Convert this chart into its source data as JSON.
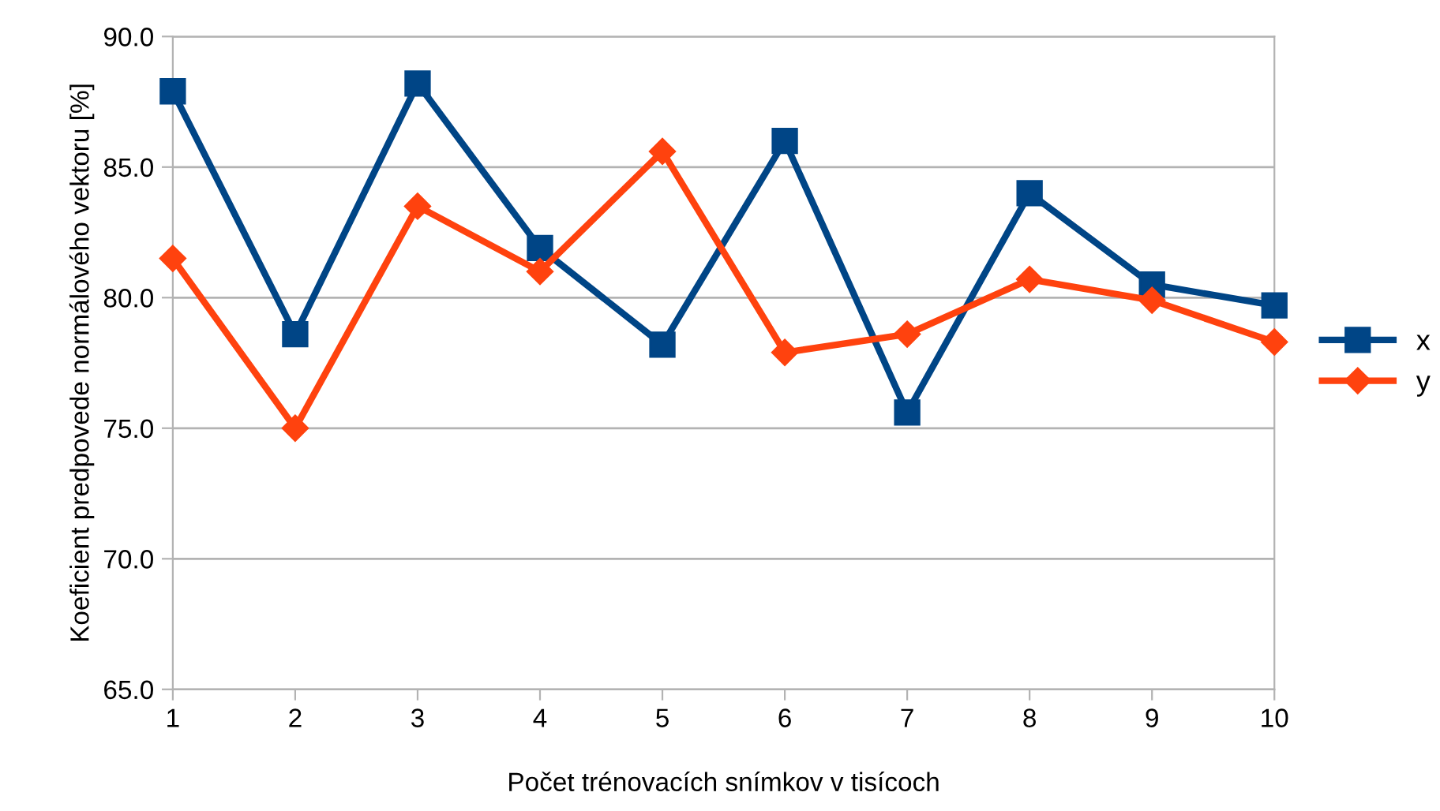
{
  "chart_data": {
    "type": "line",
    "xlabel": "Počet trénovacích snímkov v tisícoch",
    "ylabel": "Koeficient predpovede normálového vektoru [%]",
    "x": [
      1,
      2,
      3,
      4,
      5,
      6,
      7,
      8,
      9,
      10
    ],
    "series": [
      {
        "name": "x",
        "color": "#004586",
        "marker": "square",
        "values": [
          87.9,
          78.6,
          88.2,
          81.9,
          78.2,
          86.0,
          75.6,
          84.0,
          80.5,
          79.7
        ]
      },
      {
        "name": "y",
        "color": "#ff420e",
        "marker": "diamond",
        "values": [
          81.5,
          75.0,
          83.5,
          81.0,
          85.6,
          77.9,
          78.6,
          80.7,
          79.9,
          78.3
        ]
      }
    ],
    "xlim": [
      1,
      10
    ],
    "xticks": [
      1,
      2,
      3,
      4,
      5,
      6,
      7,
      8,
      9,
      10
    ],
    "ylim": [
      65,
      90
    ],
    "yticks": [
      {
        "value": 65,
        "label": "65.0"
      },
      {
        "value": 70,
        "label": "70.0"
      },
      {
        "value": 75,
        "label": "75.0"
      },
      {
        "value": 80,
        "label": "80.0"
      },
      {
        "value": 85,
        "label": "85.0"
      },
      {
        "value": 90,
        "label": "90.0"
      }
    ],
    "grid": "y",
    "legend": "right",
    "line_style": "solid"
  }
}
